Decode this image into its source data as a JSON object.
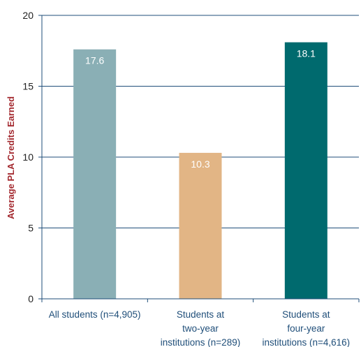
{
  "chart_data": {
    "type": "bar",
    "title": "",
    "xlabel": "",
    "ylabel": "Average PLA Credits Earned",
    "ylim": [
      0,
      20
    ],
    "yticks": [
      "0",
      "5",
      "10",
      "15",
      "20"
    ],
    "grid": true,
    "categories": [
      [
        "All students (n=4,905)"
      ],
      [
        "Students at",
        "two-year",
        "institutions (n=289)"
      ],
      [
        "Students at",
        "four-year",
        "institutions (n=4,616)"
      ]
    ],
    "values": [
      17.6,
      10.3,
      18.1
    ],
    "data_labels": [
      "17.6",
      "10.3",
      "18.1"
    ],
    "colors": [
      "#8aafb5",
      "#e2b585",
      "#006a6e"
    ],
    "axis_color": "#1f4e79",
    "ylabel_color": "#a3282e"
  }
}
